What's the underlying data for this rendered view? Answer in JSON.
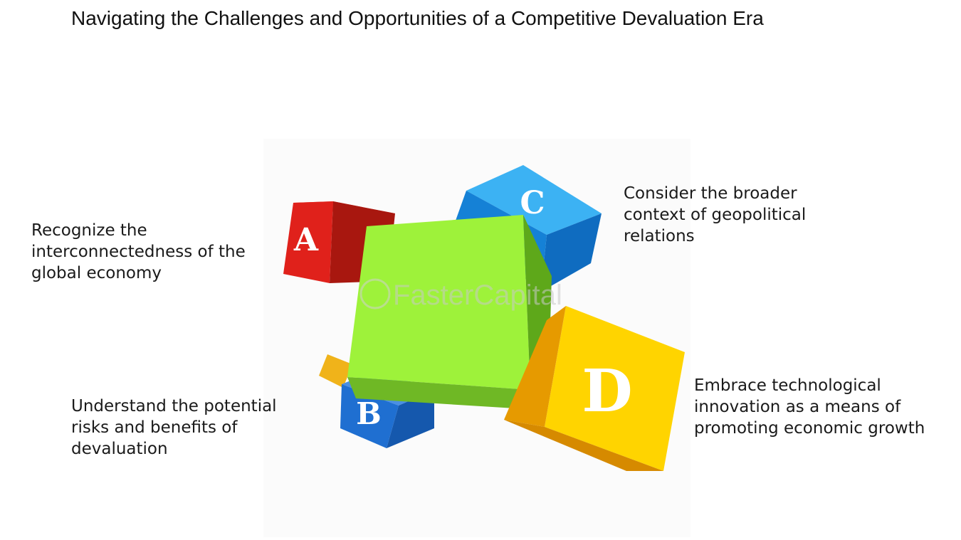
{
  "title": "Navigating the Challenges and Opportunities of a Competitive Devaluation Era",
  "watermark": "FasterCapital",
  "cubes": [
    {
      "letter": "A",
      "color": "#e8231c"
    },
    {
      "letter": "B",
      "color": "#1f6fd1"
    },
    {
      "letter": "C",
      "color": "#1e9be8"
    },
    {
      "letter": "D",
      "color": "#ffd000"
    },
    {
      "letter": "",
      "color": "#9ef23a"
    }
  ],
  "callouts": {
    "a": [
      "Recognize the",
      "interconnectedness of the",
      "global economy"
    ],
    "b": [
      "Understand the potential",
      "risks and benefits of",
      "devaluation"
    ],
    "c": [
      "Consider the broader",
      "context of geopolitical",
      "relations"
    ],
    "d": [
      "Embrace technological",
      "innovation as a means of",
      "promoting economic growth"
    ]
  }
}
